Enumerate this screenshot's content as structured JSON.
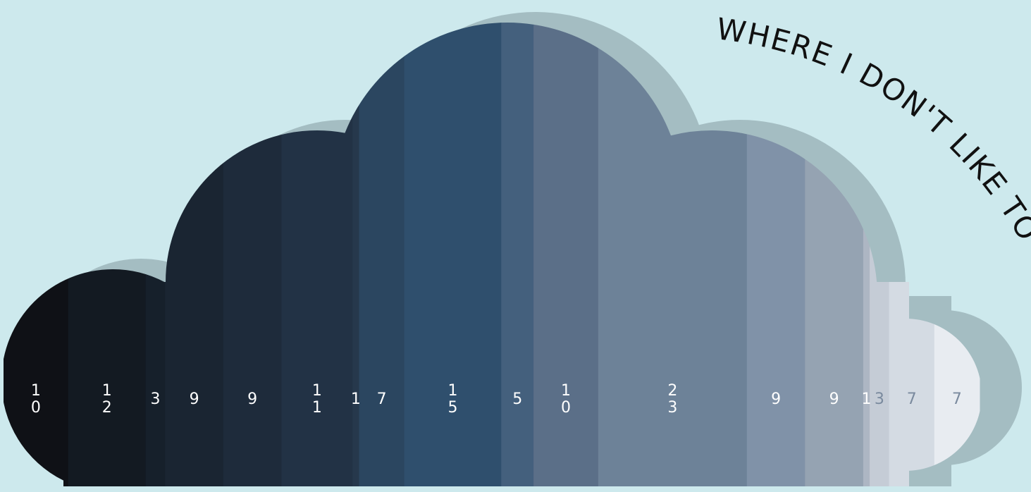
{
  "chart_data": {
    "type": "strip",
    "title": "WHERE I DON'T LIKE TO GO",
    "values": [
      10,
      12,
      3,
      9,
      9,
      11,
      1,
      7,
      15,
      5,
      10,
      23,
      9,
      9,
      1,
      3,
      7,
      7
    ],
    "colors": [
      "#0f1116",
      "#131a22",
      "#16202b",
      "#1a2532",
      "#1e2b3b",
      "#223245",
      "#26384c",
      "#2b4660",
      "#2f4f6d",
      "#44607d",
      "#5b6f88",
      "#6d8298",
      "#8092a8",
      "#95a3b2",
      "#adb6c3",
      "#c5ccd6",
      "#d4dbe3",
      "#e8ecf1"
    ]
  }
}
